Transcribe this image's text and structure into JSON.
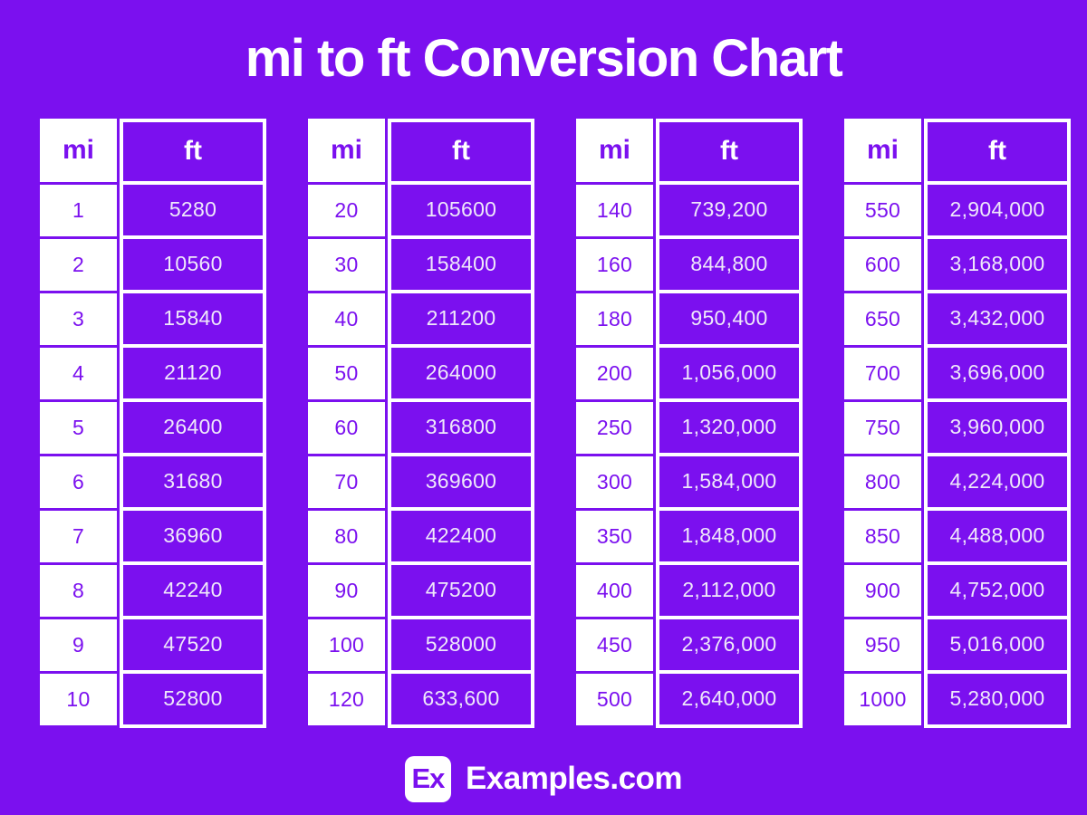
{
  "title": "mi to ft Conversion Chart",
  "colors": {
    "purple": "#7B10EF",
    "white": "#FFFFFF",
    "ft_text": "#EFE8FA"
  },
  "footer": {
    "logo_text": "Ex",
    "site_name": "Examples.com"
  },
  "chart_data": {
    "type": "table",
    "title": "mi to ft Conversion Chart",
    "columns": [
      "mi",
      "ft"
    ],
    "tables": [
      {
        "rows": [
          [
            "1",
            "5280"
          ],
          [
            "2",
            "10560"
          ],
          [
            "3",
            "15840"
          ],
          [
            "4",
            "21120"
          ],
          [
            "5",
            "26400"
          ],
          [
            "6",
            "31680"
          ],
          [
            "7",
            "36960"
          ],
          [
            "8",
            "42240"
          ],
          [
            "9",
            "47520"
          ],
          [
            "10",
            "52800"
          ]
        ]
      },
      {
        "rows": [
          [
            "20",
            "105600"
          ],
          [
            "30",
            "158400"
          ],
          [
            "40",
            "211200"
          ],
          [
            "50",
            "264000"
          ],
          [
            "60",
            "316800"
          ],
          [
            "70",
            "369600"
          ],
          [
            "80",
            "422400"
          ],
          [
            "90",
            "475200"
          ],
          [
            "100",
            "528000"
          ],
          [
            "120",
            "633,600"
          ]
        ]
      },
      {
        "rows": [
          [
            "140",
            "739,200"
          ],
          [
            "160",
            "844,800"
          ],
          [
            "180",
            "950,400"
          ],
          [
            "200",
            "1,056,000"
          ],
          [
            "250",
            "1,320,000"
          ],
          [
            "300",
            "1,584,000"
          ],
          [
            "350",
            "1,848,000"
          ],
          [
            "400",
            "2,112,000"
          ],
          [
            "450",
            "2,376,000"
          ],
          [
            "500",
            "2,640,000"
          ]
        ]
      },
      {
        "rows": [
          [
            "550",
            "2,904,000"
          ],
          [
            "600",
            "3,168,000"
          ],
          [
            "650",
            "3,432,000"
          ],
          [
            "700",
            "3,696,000"
          ],
          [
            "750",
            "3,960,000"
          ],
          [
            "800",
            "4,224,000"
          ],
          [
            "850",
            "4,488,000"
          ],
          [
            "900",
            "4,752,000"
          ],
          [
            "950",
            "5,016,000"
          ],
          [
            "1000",
            "5,280,000"
          ]
        ]
      }
    ]
  }
}
